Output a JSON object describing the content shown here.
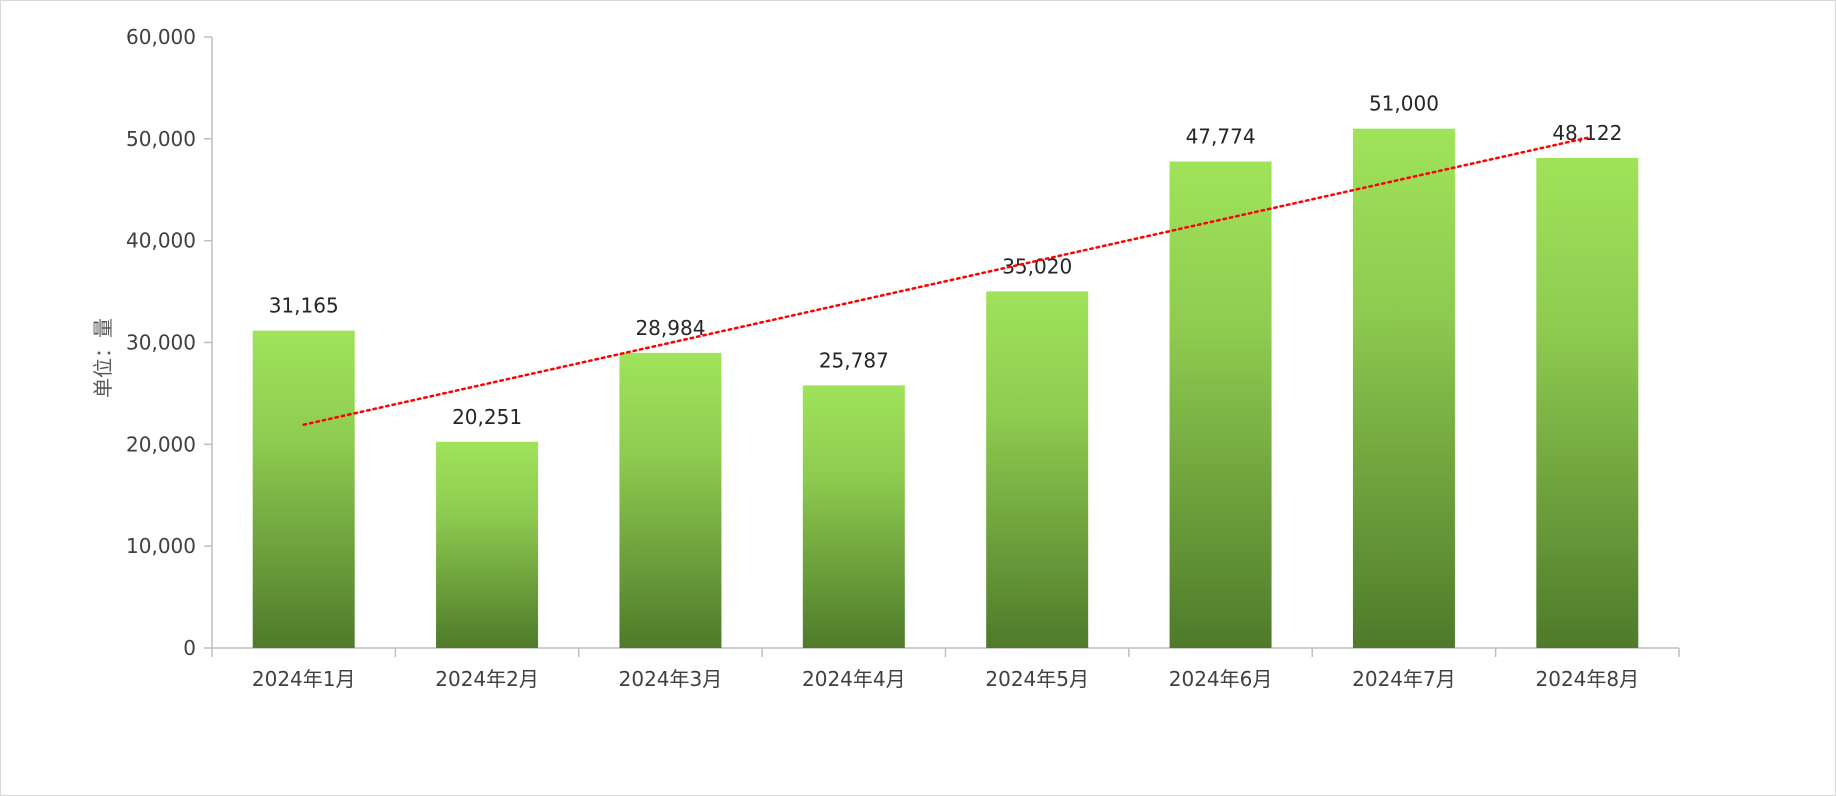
{
  "chart_data": {
    "type": "bar",
    "title": "",
    "xlabel": "",
    "ylabel": "单位：量",
    "categories": [
      "2024年1月",
      "2024年2月",
      "2024年3月",
      "2024年4月",
      "2024年5月",
      "2024年6月",
      "2024年7月",
      "2024年8月"
    ],
    "values": [
      31165,
      20251,
      28984,
      25787,
      35020,
      47774,
      51000,
      48122
    ],
    "data_labels": [
      "31,165",
      "20,251",
      "28,984",
      "25,787",
      "35,020",
      "47,774",
      "51,000",
      "48,122"
    ],
    "ylim": [
      0,
      60000
    ],
    "yticks": [
      0,
      10000,
      20000,
      30000,
      40000,
      50000,
      60000
    ],
    "ytick_labels": [
      "0",
      "10,000",
      "20,000",
      "30,000",
      "40,000",
      "50,000",
      "60,000"
    ],
    "grid": false,
    "legend": "none",
    "trendline": {
      "type": "linear",
      "style": "dotted",
      "color": "#ff0000"
    },
    "colors": {
      "bar_top": "#a0e35a",
      "bar_mid": "#8ecb50",
      "bar_bottom": "#4f7a2a",
      "axis": "#bfbfbf"
    }
  }
}
